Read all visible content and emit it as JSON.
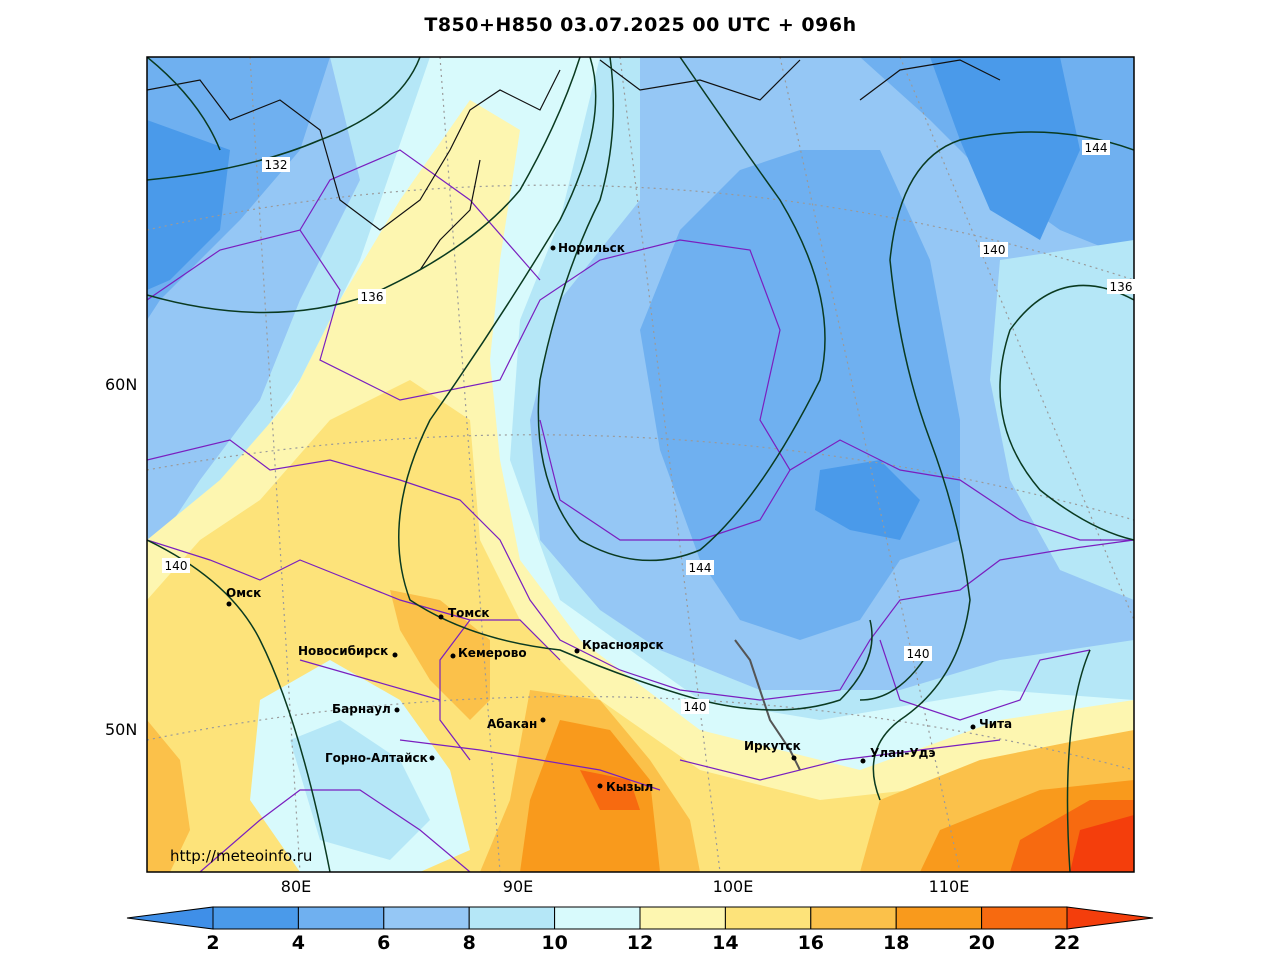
{
  "title": "T850+H850 03.07.2025 00 UTC + 096h",
  "url": "http://meteoinfo.ru",
  "lat_labels": [
    "60N",
    "50N"
  ],
  "lon_labels": [
    "80E",
    "90E",
    "100E",
    "110E"
  ],
  "colorbar": {
    "values": [
      "2",
      "4",
      "6",
      "8",
      "10",
      "12",
      "14",
      "16",
      "18",
      "20",
      "22"
    ],
    "colors": [
      "#3f8fe8",
      "#4a9aea",
      "#6fb0f0",
      "#95c7f5",
      "#b5e7f7",
      "#d8fafc",
      "#fdf6b0",
      "#fde37a",
      "#fbc14a",
      "#f99a1c",
      "#f76a10",
      "#f43e0c"
    ]
  },
  "contours": [
    "132",
    "136",
    "140",
    "144",
    "140",
    "144",
    "136",
    "140",
    "140",
    "140"
  ],
  "cities": [
    {
      "name": "Норильск"
    },
    {
      "name": "Омск"
    },
    {
      "name": "Томск"
    },
    {
      "name": "Новосибирск"
    },
    {
      "name": "Кемерово"
    },
    {
      "name": "Красноярск"
    },
    {
      "name": "Барнаул"
    },
    {
      "name": "Абакан"
    },
    {
      "name": "Горно-Алтайск"
    },
    {
      "name": "Кызыл"
    },
    {
      "name": "Иркутск"
    },
    {
      "name": "Улан-Удэ"
    },
    {
      "name": "Чита"
    }
  ]
}
